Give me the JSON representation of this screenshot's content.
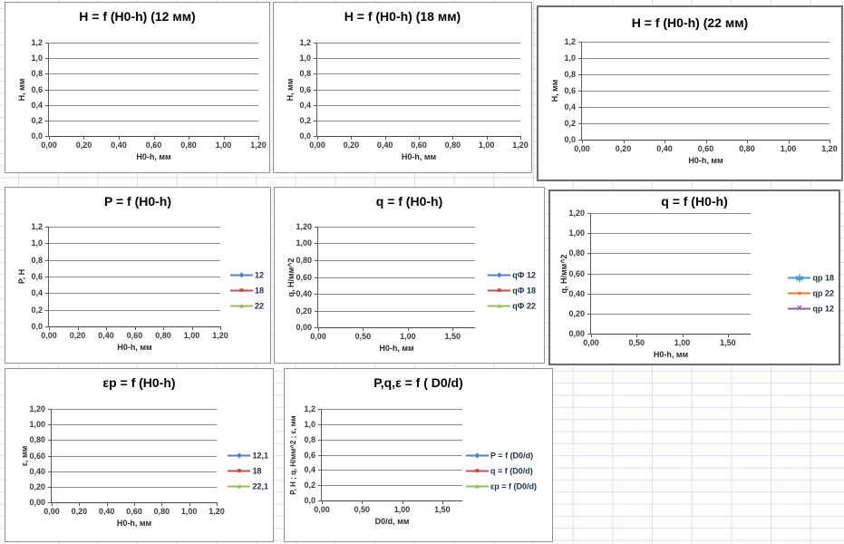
{
  "colors": {
    "series_blue": "#4F81BD",
    "series_red": "#C0504D",
    "series_green": "#9BBB59",
    "series_teal": "#3FA0BE",
    "series_orange": "#E07E2C",
    "series_purple": "#8064A2",
    "plot_gridline": "#8a8a8a",
    "chart_border": "#8f9297",
    "sheet_gridline": "#d9deea"
  },
  "chart_data": [
    {
      "type": "line",
      "title": "H = f (H0-h) (12 мм)",
      "xlabel": "H0-h, мм",
      "ylabel": "Н, мм",
      "yticks": [
        "1,2",
        "1,0",
        "0,8",
        "0,6",
        "0,4",
        "0,2",
        "0,0"
      ],
      "xticks": [
        "0,00",
        "0,20",
        "0,40",
        "0,60",
        "0,80",
        "1,00",
        "1,20"
      ],
      "xtick_values": [
        0,
        0.2,
        0.4,
        0.6,
        0.8,
        1.0,
        1.2
      ],
      "xlim": [
        0,
        1.2
      ],
      "ylim": [
        0,
        1.2
      ],
      "gridlines": "horizontal",
      "legend": [],
      "series": []
    },
    {
      "type": "line",
      "title": "H = f (H0-h) (18 мм)",
      "xlabel": "H0-h, мм",
      "ylabel": "Н, мм",
      "yticks": [
        "1,2",
        "1,0",
        "0,8",
        "0,6",
        "0,4",
        "0,2",
        "0,0"
      ],
      "xticks": [
        "0,00",
        "0,20",
        "0,40",
        "0,60",
        "0,80",
        "1,00",
        "1,20"
      ],
      "xtick_values": [
        0,
        0.2,
        0.4,
        0.6,
        0.8,
        1.0,
        1.2
      ],
      "xlim": [
        0,
        1.2
      ],
      "ylim": [
        0,
        1.2
      ],
      "gridlines": "horizontal",
      "legend": [],
      "series": []
    },
    {
      "type": "line",
      "title": "H = f (H0-h) (22 мм)",
      "xlabel": "H0-h, мм",
      "ylabel": "Н, мм",
      "yticks": [
        "1,2",
        "1,0",
        "0,8",
        "0,6",
        "0,4",
        "0,2",
        "0,0"
      ],
      "xticks": [
        "0,00",
        "0,20",
        "0,40",
        "0,60",
        "0,80",
        "1,00",
        "1,20"
      ],
      "xtick_values": [
        0,
        0.2,
        0.4,
        0.6,
        0.8,
        1.0,
        1.2
      ],
      "xlim": [
        0,
        1.2
      ],
      "ylim": [
        0,
        1.2
      ],
      "gridlines": "horizontal",
      "legend": [],
      "series": []
    },
    {
      "type": "line",
      "title": "P = f (H0-h)",
      "xlabel": "H0-h, мм",
      "ylabel": "P, H",
      "yticks": [
        "1,2",
        "1,0",
        "0,8",
        "0,6",
        "0,4",
        "0,2",
        "0,0"
      ],
      "xticks": [
        "0,00",
        "0,20",
        "0,40",
        "0,60",
        "0,80",
        "1,00",
        "1,20"
      ],
      "xtick_values": [
        0,
        0.2,
        0.4,
        0.6,
        0.8,
        1.0,
        1.2
      ],
      "xlim": [
        0,
        1.2
      ],
      "ylim": [
        0,
        1.2
      ],
      "gridlines": "horizontal",
      "legend": [
        {
          "label": "12",
          "marker": "diamond",
          "color": "#4F81BD"
        },
        {
          "label": "18",
          "marker": "square",
          "color": "#C0504D"
        },
        {
          "label": "22",
          "marker": "triangle",
          "color": "#9BBB59"
        }
      ],
      "series": [
        {
          "name": "12",
          "values": []
        },
        {
          "name": "18",
          "values": []
        },
        {
          "name": "22",
          "values": []
        }
      ]
    },
    {
      "type": "line",
      "title": "q = f (H0-h)",
      "xlabel": "H0-h, мм",
      "ylabel": "q, Н/мм^2",
      "yticks": [
        "1,20",
        "1,00",
        "0,80",
        "0,60",
        "0,40",
        "0,20",
        "0,00"
      ],
      "xticks": [
        "0,00",
        "0,50",
        "1,00",
        "1,50"
      ],
      "xtick_values": [
        0,
        0.5,
        1.0,
        1.5
      ],
      "xlim": [
        0,
        1.75
      ],
      "ylim": [
        0,
        1.2
      ],
      "gridlines": "horizontal",
      "legend": [
        {
          "label": "qФ 12",
          "marker": "diamond",
          "color": "#4F81BD"
        },
        {
          "label": "qФ 18",
          "marker": "square",
          "color": "#C0504D"
        },
        {
          "label": "qФ 22",
          "marker": "triangle",
          "color": "#9BBB59"
        }
      ],
      "series": [
        {
          "name": "qФ 12",
          "values": []
        },
        {
          "name": "qФ 18",
          "values": []
        },
        {
          "name": "qФ 22",
          "values": []
        }
      ]
    },
    {
      "type": "line",
      "title": "q = f (H0-h)",
      "xlabel": "H0-h, мм",
      "ylabel": "q, Н/мм^2",
      "yticks": [
        "1,20",
        "1,00",
        "0,80",
        "0,60",
        "0,40",
        "0,20",
        "0,00"
      ],
      "xticks": [
        "0,00",
        "0,50",
        "1,00",
        "1,50"
      ],
      "xtick_values": [
        0,
        0.5,
        1.0,
        1.5
      ],
      "xlim": [
        0,
        1.75
      ],
      "ylim": [
        0,
        1.2
      ],
      "gridlines": "horizontal",
      "legend": [
        {
          "label": "qp 18",
          "marker": "asterisk",
          "color": "#3FA0BE"
        },
        {
          "label": "qp 22",
          "marker": "circle",
          "color": "#E07E2C"
        },
        {
          "label": "qp 12",
          "marker": "x",
          "color": "#8064A2"
        }
      ],
      "series": [
        {
          "name": "qp 18",
          "values": []
        },
        {
          "name": "qp 22",
          "values": []
        },
        {
          "name": "qp 12",
          "values": []
        }
      ]
    },
    {
      "type": "line",
      "title": "εp = f (H0-h)",
      "xlabel": "H0-h, мм",
      "ylabel": "ε, мм",
      "yticks": [
        "1,20",
        "1,00",
        "0,80",
        "0,60",
        "0,40",
        "0,20",
        "0,00"
      ],
      "xticks": [
        "0,00",
        "0,20",
        "0,40",
        "0,60",
        "0,80",
        "1,00",
        "1,20"
      ],
      "xtick_values": [
        0,
        0.2,
        0.4,
        0.6,
        0.8,
        1.0,
        1.2
      ],
      "xlim": [
        0,
        1.2
      ],
      "ylim": [
        0,
        1.2
      ],
      "gridlines": "horizontal",
      "legend": [
        {
          "label": "12,1",
          "marker": "diamond",
          "color": "#4F81BD"
        },
        {
          "label": "18",
          "marker": "square",
          "color": "#C0504D"
        },
        {
          "label": "22,1",
          "marker": "triangle",
          "color": "#9BBB59"
        }
      ],
      "series": [
        {
          "name": "12,1",
          "values": []
        },
        {
          "name": "18",
          "values": []
        },
        {
          "name": "22,1",
          "values": []
        }
      ]
    },
    {
      "type": "line",
      "title": "P,q,ε = f ( D0/d)",
      "xlabel": "D0/d, мм",
      "ylabel": "P, H ; q, H/мм^2 ; ε, мм",
      "yticks": [
        "1,2",
        "1,0",
        "0,8",
        "0,6",
        "0,4",
        "0,2",
        "0,0"
      ],
      "xticks": [
        "0,00",
        "0,50",
        "1,00",
        "1,50"
      ],
      "xtick_values": [
        0,
        0.5,
        1.0,
        1.5
      ],
      "xlim": [
        0,
        1.75
      ],
      "ylim": [
        0,
        1.2
      ],
      "gridlines": "horizontal",
      "legend": [
        {
          "label": "P = f (D0/d)",
          "marker": "diamond",
          "color": "#4F81BD"
        },
        {
          "label": "q = f (D0/d)",
          "marker": "square",
          "color": "#C0504D"
        },
        {
          "label": "εp = f (D0/d)",
          "marker": "triangle",
          "color": "#9BBB59"
        }
      ],
      "series": [
        {
          "name": "P = f (D0/d)",
          "values": []
        },
        {
          "name": "q = f (D0/d)",
          "values": []
        },
        {
          "name": "εp = f (D0/d)",
          "values": []
        }
      ]
    }
  ]
}
